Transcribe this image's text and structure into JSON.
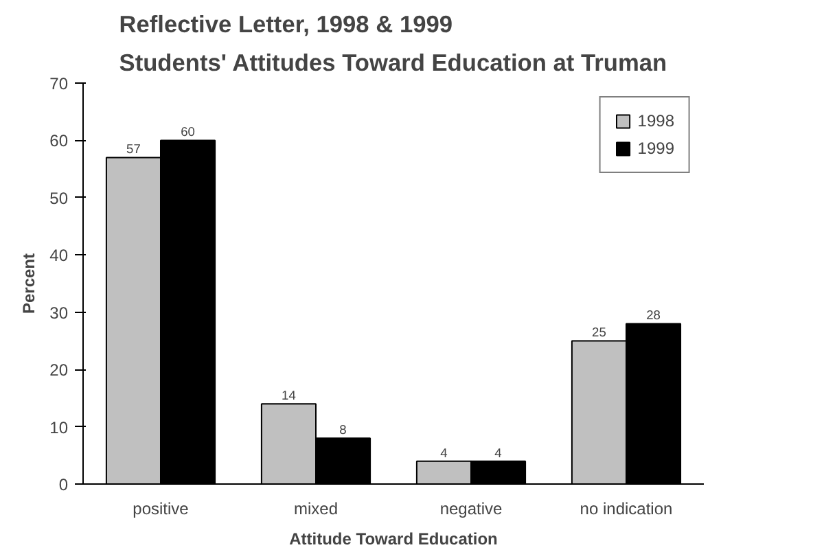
{
  "chart_data": {
    "type": "bar",
    "title": "Reflective Letter, 1998 & 1999\nStudents' Attitudes Toward Education at Truman",
    "xlabel": "Attitude Toward Education",
    "ylabel": "Percent",
    "categories": [
      "positive",
      "mixed",
      "negative",
      "no indication"
    ],
    "series": [
      {
        "name": "1998",
        "color": "#c0c0c0",
        "values": [
          57,
          14,
          4,
          25
        ]
      },
      {
        "name": "1999",
        "color": "#000000",
        "values": [
          60,
          8,
          4,
          28
        ]
      }
    ],
    "ylim": [
      0,
      70
    ],
    "yticks": [
      0,
      10,
      20,
      30,
      40,
      50,
      60,
      70
    ],
    "grid": false,
    "legend": "top right",
    "data_labels": true
  }
}
